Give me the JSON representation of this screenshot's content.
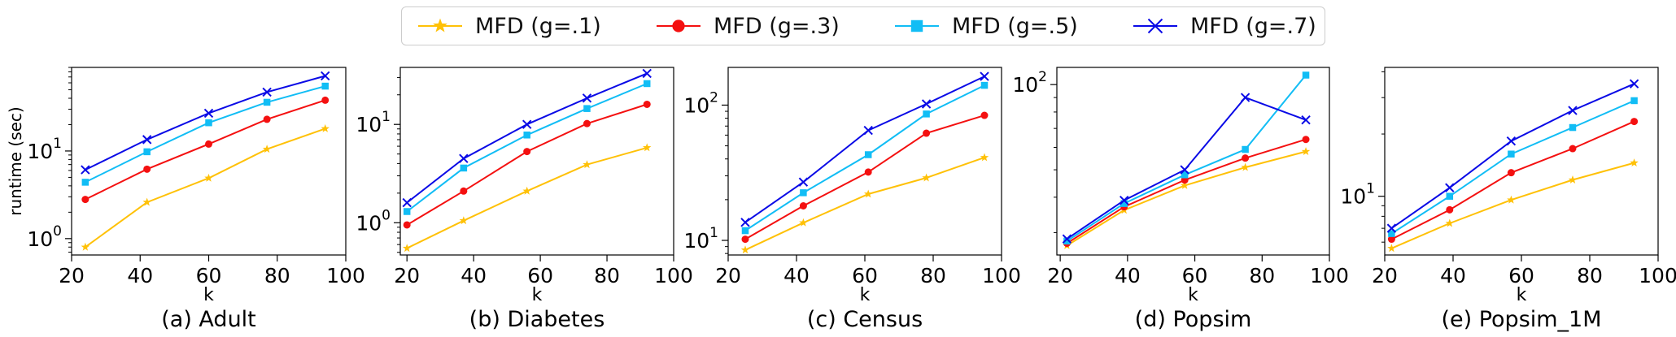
{
  "colors": {
    "g1": "#FFC107",
    "g3": "#F41010",
    "g5": "#11BDF5",
    "g7": "#0A0AE6"
  },
  "legend": [
    {
      "label": "MFD (g=.1)",
      "color": "#FFC107",
      "marker": "star"
    },
    {
      "label": "MFD (g=.3)",
      "color": "#F41010",
      "marker": "circle"
    },
    {
      "label": "MFD (g=.5)",
      "color": "#11BDF5",
      "marker": "square"
    },
    {
      "label": "MFD (g=.7)",
      "color": "#0A0AE6",
      "marker": "x"
    }
  ],
  "chart_data": [
    {
      "type": "line",
      "title": "(a) Adult",
      "xlabel": "k",
      "ylabel": "runtime (sec)",
      "yscale": "log",
      "xlim": [
        20,
        100
      ],
      "ylim": [
        0.65,
        90
      ],
      "xticks": [
        20,
        40,
        60,
        80,
        100
      ],
      "yticks": [
        {
          "value": 1,
          "label": "10",
          "exp": "0"
        },
        {
          "value": 10,
          "label": "10",
          "exp": "1"
        }
      ],
      "x": [
        24,
        42,
        60,
        77,
        94
      ],
      "series": [
        {
          "name": "MFD (g=.1)",
          "values": [
            0.8,
            2.6,
            4.9,
            10.5,
            18
          ]
        },
        {
          "name": "MFD (g=.3)",
          "values": [
            2.8,
            6.2,
            12,
            23,
            38
          ]
        },
        {
          "name": "MFD (g=.5)",
          "values": [
            4.4,
            9.8,
            21,
            36,
            55
          ]
        },
        {
          "name": "MFD (g=.7)",
          "values": [
            6.1,
            13.5,
            27,
            47,
            72
          ]
        }
      ]
    },
    {
      "type": "line",
      "title": "(b) Diabetes",
      "xlabel": "k",
      "ylabel": "",
      "yscale": "log",
      "xlim": [
        18,
        100
      ],
      "ylim": [
        0.47,
        38
      ],
      "xticks": [
        20,
        40,
        60,
        80,
        100
      ],
      "yticks": [
        {
          "value": 1,
          "label": "10",
          "exp": "0"
        },
        {
          "value": 10,
          "label": "10",
          "exp": "1"
        }
      ],
      "x": [
        20,
        37,
        56,
        74,
        92
      ],
      "series": [
        {
          "name": "MFD (g=.1)",
          "values": [
            0.55,
            1.05,
            2.1,
            3.9,
            5.8
          ]
        },
        {
          "name": "MFD (g=.3)",
          "values": [
            0.95,
            2.1,
            5.3,
            10.2,
            16
          ]
        },
        {
          "name": "MFD (g=.5)",
          "values": [
            1.3,
            3.6,
            7.8,
            14.5,
            26
          ]
        },
        {
          "name": "MFD (g=.7)",
          "values": [
            1.6,
            4.5,
            10,
            18.5,
            33
          ]
        }
      ]
    },
    {
      "type": "line",
      "title": "(c) Census",
      "xlabel": "k",
      "ylabel": "",
      "yscale": "log",
      "xlim": [
        20,
        100
      ],
      "ylim": [
        7.8,
        190
      ],
      "xticks": [
        20,
        40,
        60,
        80,
        100
      ],
      "yticks": [
        {
          "value": 10,
          "label": "10",
          "exp": "1"
        },
        {
          "value": 100,
          "label": "10",
          "exp": "2"
        }
      ],
      "x": [
        25,
        42,
        61,
        78,
        95
      ],
      "series": [
        {
          "name": "MFD (g=.1)",
          "values": [
            8.5,
            13.5,
            22,
            29,
            41
          ]
        },
        {
          "name": "MFD (g=.3)",
          "values": [
            10.2,
            18,
            32,
            62,
            84
          ]
        },
        {
          "name": "MFD (g=.5)",
          "values": [
            11.8,
            22.5,
            43,
            86,
            140
          ]
        },
        {
          "name": "MFD (g=.7)",
          "values": [
            13.6,
            27,
            65,
            102,
            163
          ]
        }
      ]
    },
    {
      "type": "line",
      "title": "(d) Popsim",
      "xlabel": "k",
      "ylabel": "",
      "yscale": "log",
      "xlim": [
        19,
        100
      ],
      "ylim": [
        25,
        115
      ],
      "xticks": [
        20,
        40,
        60,
        80,
        100
      ],
      "yticks": [
        {
          "value": 100,
          "label": "10",
          "exp": "2"
        }
      ],
      "x": [
        22,
        39,
        57,
        75,
        93
      ],
      "series": [
        {
          "name": "MFD (g=.1)",
          "values": [
            27,
            36,
            44,
            51,
            58
          ]
        },
        {
          "name": "MFD (g=.3)",
          "values": [
            27.5,
            37,
            46,
            55,
            64
          ]
        },
        {
          "name": "MFD (g=.5)",
          "values": [
            28,
            38,
            48,
            59,
            108
          ]
        },
        {
          "name": "MFD (g=.7)",
          "values": [
            28.5,
            39,
            50,
            90,
            75
          ]
        }
      ]
    },
    {
      "type": "line",
      "title": "(e) Popsim_1M",
      "xlabel": "k",
      "ylabel": "",
      "yscale": "log",
      "xlim": [
        20,
        100
      ],
      "ylim": [
        5.2,
        42
      ],
      "xticks": [
        20,
        40,
        60,
        80,
        100
      ],
      "yticks": [
        {
          "value": 10,
          "label": "10",
          "exp": "1"
        }
      ],
      "x": [
        22,
        39,
        57,
        75,
        93
      ],
      "series": [
        {
          "name": "MFD (g=.1)",
          "values": [
            5.6,
            7.4,
            9.6,
            12,
            14.5
          ]
        },
        {
          "name": "MFD (g=.3)",
          "values": [
            6.2,
            8.6,
            13,
            17,
            23
          ]
        },
        {
          "name": "MFD (g=.5)",
          "values": [
            6.6,
            10,
            16,
            21.5,
            29
          ]
        },
        {
          "name": "MFD (g=.7)",
          "values": [
            7,
            11,
            18.5,
            26,
            35
          ]
        }
      ]
    }
  ]
}
